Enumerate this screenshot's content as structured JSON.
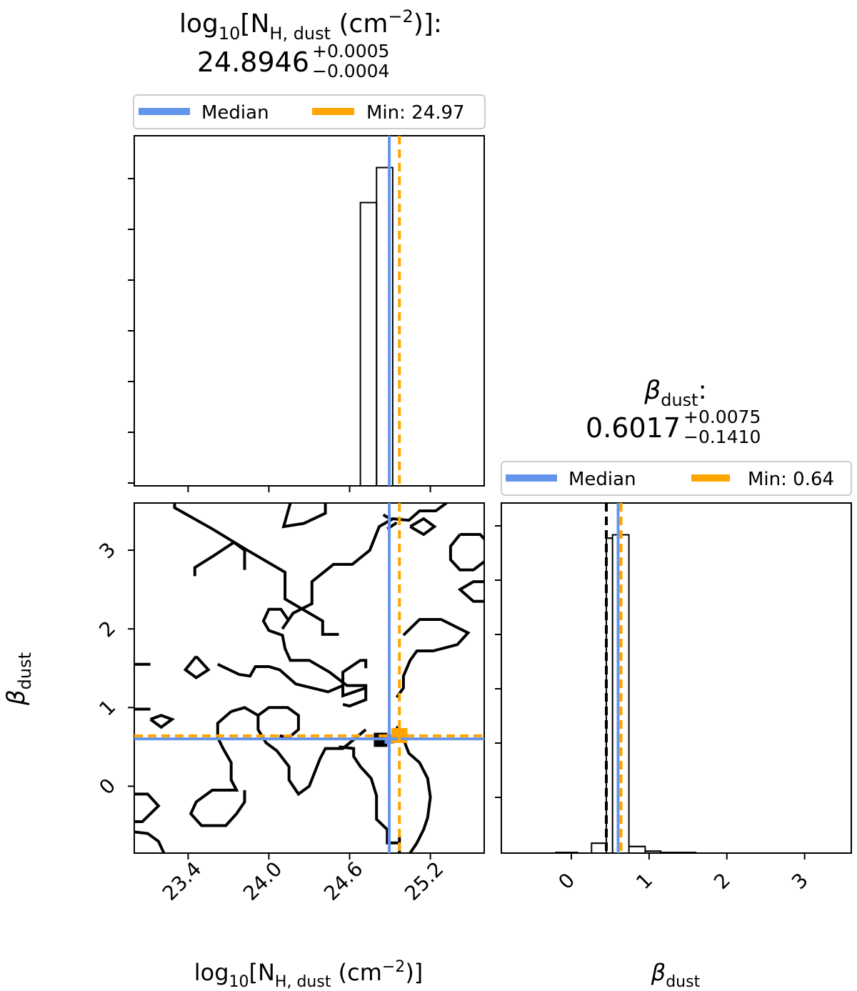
{
  "colors": {
    "median": "#6495ED",
    "min": "#FFA500",
    "contour": "#000000",
    "frame": "#000000"
  },
  "chart_data": [
    {
      "type": "histogram",
      "panel": "top-left",
      "title": {
        "prefix": "log",
        "log_sub": "10",
        "lb": "[N",
        "n_sub": "H, dust",
        "unit": " (cm",
        "exp": "−2",
        "close": ")]:",
        "value": "24.8946",
        "err_plus": "+0.0005",
        "err_minus": "−0.0004"
      },
      "legend": [
        {
          "label": "Median",
          "color": "#6495ED"
        },
        {
          "label": "Min: 24.97",
          "color": "#FFA500"
        }
      ],
      "legend_position": "above panel",
      "xlim": [
        23.0,
        25.6
      ],
      "median": 24.8946,
      "min": 24.97,
      "bins": [
        {
          "x0": 24.68,
          "x1": 24.8,
          "count": 0.89
        },
        {
          "x0": 24.8,
          "x1": 24.92,
          "count": 1.0
        }
      ],
      "y_tick_count": 7,
      "x_tick_values": [
        23.4,
        24.0,
        24.6,
        25.2
      ],
      "y_tick_labels_shown": false
    },
    {
      "type": "contour",
      "panel": "bottom-left",
      "xlabel": {
        "prefix": "log",
        "log_sub": "10",
        "lb": "[N",
        "n_sub": "H, dust",
        "unit": " (cm",
        "exp": "−2",
        "close": ")]"
      },
      "ylabel": {
        "sym": "β",
        "sub": "dust"
      },
      "xlim": [
        23.0,
        25.6
      ],
      "ylim": [
        -0.85,
        3.6
      ],
      "x_ticks": [
        "23.4",
        "24.0",
        "24.6",
        "25.2"
      ],
      "x_tick_values": [
        23.4,
        24.0,
        24.6,
        25.2
      ],
      "y_ticks": [
        "0",
        "1",
        "2",
        "3"
      ],
      "y_tick_values": [
        0,
        1,
        2,
        3
      ],
      "median": {
        "x": 24.8946,
        "y": 0.6017
      },
      "min": {
        "x": 24.97,
        "y": 0.64
      },
      "contours": [
        [
          [
            23.3,
            3.6
          ],
          [
            23.3,
            3.54
          ],
          [
            23.58,
            3.27
          ],
          [
            23.84,
            3.0
          ],
          [
            24.12,
            2.72
          ],
          [
            24.12,
            2.38
          ],
          [
            24.4,
            2.1
          ],
          [
            24.4,
            1.93
          ],
          [
            24.52,
            1.93
          ]
        ],
        [
          [
            23.0,
            1.55
          ],
          [
            23.12,
            1.55
          ]
        ],
        [
          [
            23.82,
            2.75
          ],
          [
            23.82,
            3.0
          ],
          [
            23.74,
            3.1
          ],
          [
            23.59,
            2.93
          ],
          [
            23.45,
            2.78
          ],
          [
            23.45,
            2.67
          ]
        ],
        [
          [
            24.1,
            2.0
          ],
          [
            24.18,
            2.2
          ],
          [
            24.32,
            2.32
          ],
          [
            24.32,
            2.6
          ],
          [
            24.48,
            2.82
          ],
          [
            24.62,
            2.82
          ],
          [
            24.75,
            3.0
          ],
          [
            24.82,
            3.3
          ],
          [
            24.92,
            3.4
          ],
          [
            25.04,
            3.38
          ],
          [
            25.12,
            3.5
          ],
          [
            25.24,
            3.5
          ],
          [
            25.32,
            3.6
          ]
        ],
        [
          [
            24.88,
            3.27
          ],
          [
            24.95,
            3.35
          ]
        ],
        [
          [
            24.1,
            1.92
          ],
          [
            24.0,
            1.98
          ],
          [
            23.96,
            2.1
          ],
          [
            24.0,
            2.25
          ],
          [
            24.09,
            2.25
          ],
          [
            24.15,
            2.1
          ]
        ],
        [
          [
            24.42,
            3.6
          ],
          [
            24.42,
            3.47
          ],
          [
            24.26,
            3.34
          ],
          [
            24.11,
            3.3
          ],
          [
            24.16,
            3.6
          ]
        ],
        [
          [
            24.85,
            3.45
          ],
          [
            24.92,
            3.38
          ]
        ],
        [
          [
            25.05,
            3.3
          ],
          [
            25.15,
            3.4
          ],
          [
            25.23,
            3.3
          ],
          [
            25.15,
            3.2
          ],
          [
            25.05,
            3.3
          ]
        ],
        [
          [
            25.42,
            3.2
          ],
          [
            25.57,
            3.2
          ],
          [
            25.65,
            3.05
          ],
          [
            25.62,
            2.88
          ],
          [
            25.52,
            2.75
          ],
          [
            25.42,
            2.75
          ],
          [
            25.35,
            2.88
          ],
          [
            25.35,
            3.05
          ],
          [
            25.42,
            3.2
          ]
        ],
        [
          [
            25.6,
            2.6
          ],
          [
            25.52,
            2.6
          ],
          [
            25.42,
            2.5
          ],
          [
            25.52,
            2.35
          ],
          [
            25.6,
            2.35
          ]
        ],
        [
          [
            24.1,
            1.93
          ],
          [
            24.12,
            1.75
          ],
          [
            24.16,
            1.6
          ],
          [
            24.3,
            1.6
          ],
          [
            24.45,
            1.45
          ],
          [
            24.58,
            1.28
          ],
          [
            24.72,
            1.28
          ],
          [
            24.72,
            1.25
          ],
          [
            24.55,
            1.15
          ],
          [
            24.55,
            1.45
          ],
          [
            24.68,
            1.6
          ],
          [
            24.72,
            1.6
          ],
          [
            24.72,
            1.5
          ]
        ],
        [
          [
            25.0,
            1.92
          ],
          [
            25.12,
            2.12
          ],
          [
            25.28,
            2.12
          ],
          [
            25.48,
            1.95
          ],
          [
            25.4,
            1.8
          ],
          [
            25.22,
            1.72
          ],
          [
            25.1,
            1.72
          ],
          [
            25.05,
            1.6
          ],
          [
            25.0,
            1.4
          ],
          [
            25.0,
            1.25
          ],
          [
            24.95,
            1.13
          ]
        ],
        [
          [
            24.72,
            1.25
          ],
          [
            24.72,
            1.1
          ],
          [
            24.6,
            1.02
          ],
          [
            24.55,
            1.04
          ]
        ],
        [
          [
            23.62,
            1.55
          ],
          [
            23.78,
            1.42
          ],
          [
            23.86,
            1.4
          ],
          [
            23.9,
            1.52
          ],
          [
            24.0,
            1.52
          ],
          [
            24.08,
            1.48
          ],
          [
            24.2,
            1.3
          ],
          [
            24.44,
            1.2
          ],
          [
            24.55,
            1.28
          ]
        ],
        [
          [
            23.46,
            1.65
          ],
          [
            23.55,
            1.48
          ],
          [
            23.46,
            1.38
          ],
          [
            23.38,
            1.48
          ],
          [
            23.46,
            1.65
          ]
        ],
        [
          [
            23.12,
            0.98
          ],
          [
            23.0,
            0.98
          ]
        ],
        [
          [
            23.12,
            0.85
          ],
          [
            23.2,
            0.9
          ],
          [
            23.28,
            0.85
          ],
          [
            23.2,
            0.75
          ],
          [
            23.12,
            0.85
          ]
        ],
        [
          [
            23.72,
            0.95
          ],
          [
            23.82,
            1.0
          ],
          [
            23.92,
            0.9
          ],
          [
            23.92,
            0.72
          ],
          [
            23.98,
            0.55
          ],
          [
            24.06,
            0.45
          ],
          [
            24.15,
            0.25
          ],
          [
            24.15,
            0.08
          ],
          [
            24.22,
            -0.1
          ],
          [
            24.3,
            0.0
          ],
          [
            24.38,
            0.35
          ],
          [
            24.42,
            0.48
          ],
          [
            24.55,
            0.48
          ],
          [
            24.65,
            0.62
          ],
          [
            24.72,
            0.72
          ]
        ],
        [
          [
            23.92,
            0.9
          ],
          [
            24.0,
            1.0
          ],
          [
            24.14,
            1.0
          ],
          [
            24.22,
            0.9
          ],
          [
            24.22,
            0.72
          ],
          [
            24.15,
            0.62
          ],
          [
            24.08,
            0.64
          ]
        ],
        [
          [
            23.72,
            0.95
          ],
          [
            23.62,
            0.8
          ],
          [
            23.62,
            0.62
          ],
          [
            23.66,
            0.48
          ],
          [
            23.72,
            0.3
          ],
          [
            23.72,
            0.08
          ],
          [
            23.76,
            -0.05
          ],
          [
            23.58,
            -0.05
          ],
          [
            23.46,
            -0.2
          ],
          [
            23.42,
            -0.35
          ],
          [
            23.5,
            -0.5
          ],
          [
            23.68,
            -0.5
          ],
          [
            23.76,
            -0.35
          ],
          [
            23.82,
            -0.2
          ],
          [
            23.82,
            -0.05
          ]
        ],
        [
          [
            23.0,
            -0.1
          ],
          [
            23.1,
            -0.1
          ],
          [
            23.18,
            -0.25
          ],
          [
            23.06,
            -0.45
          ],
          [
            23.0,
            -0.45
          ]
        ],
        [
          [
            23.0,
            -0.58
          ],
          [
            23.1,
            -0.6
          ],
          [
            23.18,
            -0.7
          ],
          [
            23.22,
            -0.85
          ]
        ],
        [
          [
            24.52,
            0.5
          ],
          [
            24.63,
            0.48
          ],
          [
            24.63,
            0.38
          ],
          [
            24.68,
            0.25
          ],
          [
            24.76,
            0.1
          ],
          [
            24.8,
            -0.12
          ],
          [
            24.8,
            -0.42
          ],
          [
            24.88,
            -0.55
          ],
          [
            24.88,
            -0.72
          ],
          [
            24.96,
            -0.72
          ]
        ],
        [
          [
            24.91,
            0.62
          ],
          [
            24.96,
            0.76
          ]
        ],
        [
          [
            25.0,
            0.6
          ],
          [
            25.04,
            0.42
          ],
          [
            25.12,
            0.3
          ],
          [
            25.18,
            0.1
          ],
          [
            25.2,
            -0.14
          ],
          [
            25.18,
            -0.4
          ],
          [
            25.15,
            -0.55
          ],
          [
            25.1,
            -0.72
          ],
          [
            25.05,
            -0.85
          ]
        ],
        [
          [
            24.97,
            -0.88
          ],
          [
            24.97,
            -0.62
          ]
        ]
      ],
      "solid_marker_rects": [
        {
          "x0": 24.78,
          "x1": 24.88,
          "y0": 0.5,
          "y1": 0.68,
          "color": "#000000"
        },
        {
          "x0": 24.86,
          "x1": 24.93,
          "y0": 0.54,
          "y1": 0.66,
          "color": "#6495ED"
        },
        {
          "x0": 24.91,
          "x1": 25.03,
          "y0": 0.55,
          "y1": 0.74,
          "color": "#FFA500"
        }
      ]
    },
    {
      "type": "histogram",
      "panel": "bottom-right",
      "title": {
        "sym": "β",
        "sub": "dust",
        "colon": ":",
        "value": "0.6017",
        "err_plus": "+0.0075",
        "err_minus": "−0.1410"
      },
      "legend": [
        {
          "label": "Median",
          "color": "#6495ED"
        },
        {
          "label": "Min: 0.64",
          "color": "#FFA500"
        }
      ],
      "legend_position": "above panel",
      "xlabel": {
        "sym": "β",
        "sub": "dust"
      },
      "xlim": [
        -0.9,
        3.6
      ],
      "x_ticks": [
        "0",
        "1",
        "2",
        "3"
      ],
      "x_tick_values": [
        0,
        1,
        2,
        3
      ],
      "median": 0.6017,
      "min": 0.64,
      "extra_dashed_line": 0.45,
      "bins": [
        {
          "x0": -0.2,
          "x1": 0.08,
          "count": 0.002
        },
        {
          "x0": 0.26,
          "x1": 0.45,
          "count": 0.03
        },
        {
          "x0": 0.45,
          "x1": 0.53,
          "count": 0.95
        },
        {
          "x0": 0.53,
          "x1": 0.74,
          "count": 0.96
        },
        {
          "x0": 0.74,
          "x1": 0.95,
          "count": 0.02
        },
        {
          "x0": 0.95,
          "x1": 1.15,
          "count": 0.006
        },
        {
          "x0": 1.15,
          "x1": 1.6,
          "count": 0.002
        }
      ],
      "y_tick_count": 6,
      "y_tick_labels_shown": false
    }
  ]
}
